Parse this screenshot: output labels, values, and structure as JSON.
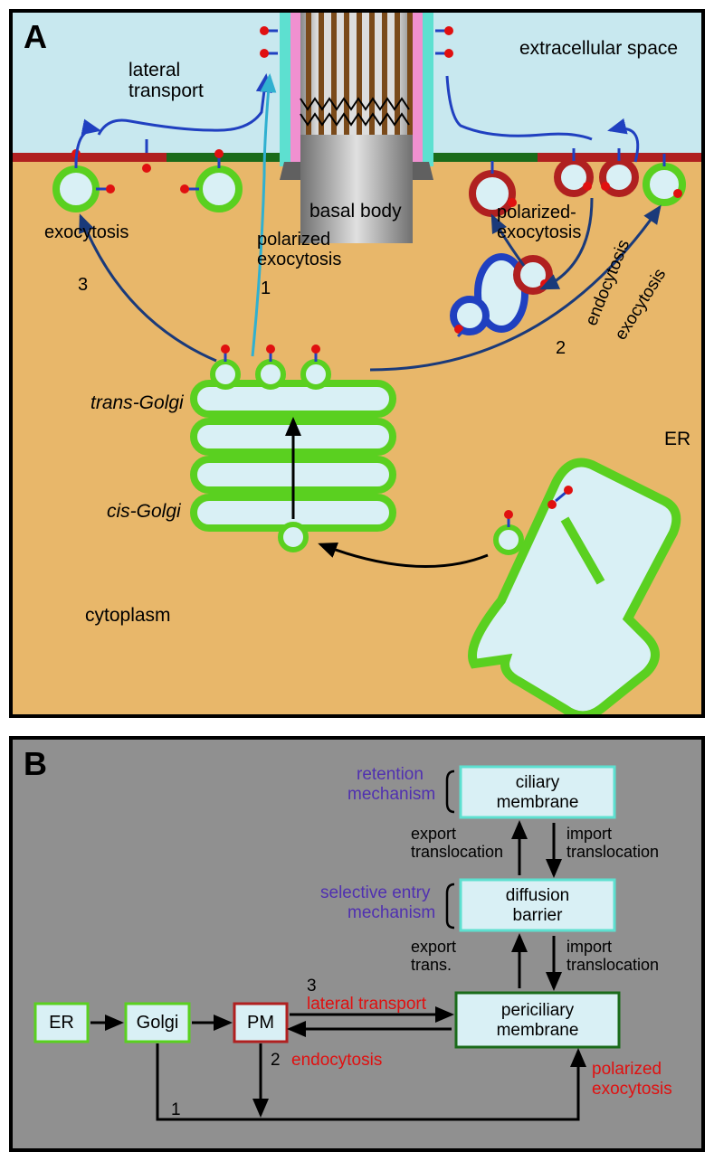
{
  "panelA": {
    "letter": "A",
    "colors": {
      "extracellular": "#c8e8ef",
      "cytoplasm": "#e8b76a",
      "plasma_membrane": "#b02020",
      "periciliary_membrane": "#1a6b1a",
      "ciliary_membrane": "#5de0d0",
      "ciliary_sheath": "#f090d0",
      "green_membrane": "#5ad020",
      "vesicle_fill": "#d9f0f5",
      "endosome_blue": "#2040c0",
      "basal_body_gray": "#b0b0b0",
      "basal_body_dark": "#808080",
      "doublet_inner": "#7a4a1a",
      "protein_red": "#e01010"
    },
    "labels": {
      "extracellular": "extracellular space",
      "lateral": "lateral transport",
      "basal": "basal body",
      "polarized_exo_left": "polarized exocytosis",
      "polarized_exo_right": "polarized-exocytosis",
      "exocytosis": "exocytosis",
      "endocytosis": "endocytosis",
      "exocytosis2": "exocytosis",
      "trans_golgi": "trans-Golgi",
      "cis_golgi": "cis-Golgi",
      "cytoplasm": "cytoplasm",
      "er": "ER",
      "num1": "1",
      "num2": "2",
      "num3": "3"
    }
  },
  "panelB": {
    "letter": "B",
    "background": "#909090",
    "boxes": {
      "er": {
        "label": "ER",
        "stroke": "#5ad020"
      },
      "golgi": {
        "label": "Golgi",
        "stroke": "#5ad020"
      },
      "pm": {
        "label": "PM",
        "stroke": "#b02020"
      },
      "periciliary": {
        "label": "periciliary membrane",
        "stroke": "#1a6b1a"
      },
      "diffusion": {
        "label": "diffusion barrier",
        "stroke": "#5de0d0"
      },
      "ciliary": {
        "label": "ciliary membrane",
        "stroke": "#5de0d0"
      }
    },
    "labels": {
      "retention": "retention mechanism",
      "selective": "selective entry mechanism",
      "export_trans1": "export translocation",
      "import_trans1": "import translocation",
      "export_trans2": "export trans.",
      "import_trans2": "import translocation",
      "lateral": "lateral transport",
      "endocytosis": "endocytosis",
      "polarized": "polarized exocytosis",
      "num1": "1",
      "num2": "2",
      "num3": "3"
    },
    "colors": {
      "purple": "#5030b0",
      "red": "#e01010",
      "black": "#000000"
    }
  }
}
